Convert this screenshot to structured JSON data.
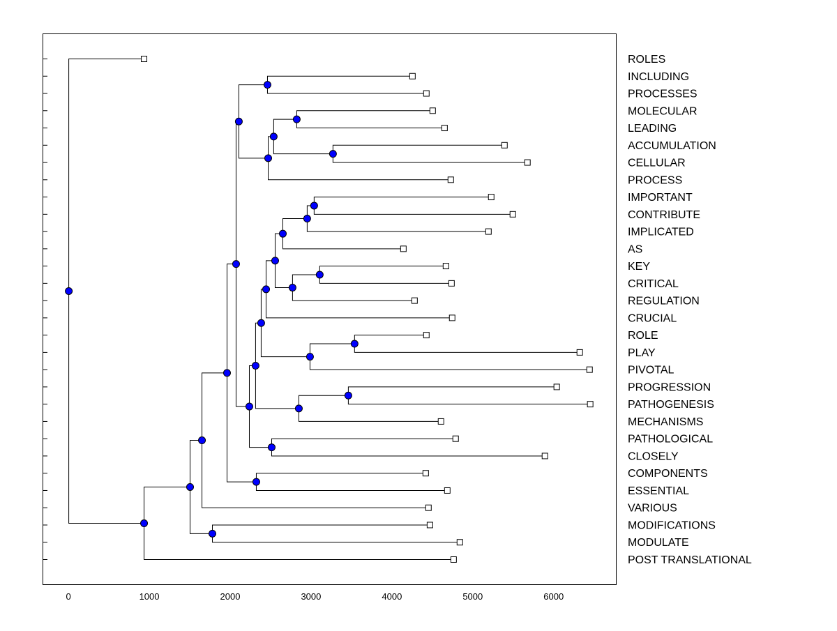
{
  "chart_data": {
    "type": "dendrogram",
    "title": "",
    "xlabel": "",
    "ylabel": "",
    "xlim": [
      -320,
      6770
    ],
    "xticks": [
      0,
      1000,
      2000,
      3000,
      4000,
      5000,
      6000
    ],
    "xtick_labels": [
      "0",
      "1000",
      "2000",
      "3000",
      "4000",
      "5000",
      "6000"
    ],
    "colors": {
      "node": "#0000ff",
      "leaf": "#ffffff",
      "line": "#000000"
    },
    "tree": {
      "x": 0,
      "children": [
        {
          "label": "ROLES",
          "x": 931
        },
        {
          "x": 931,
          "children": [
            {
              "x": 1500,
              "children": [
                {
                  "x": 1647,
                  "children": [
                    {
                      "x": 1957,
                      "children": [
                        {
                          "x": 2069,
                          "children": [
                            {
                              "x": 2103,
                              "children": [
                                {
                                  "x": 2457,
                                  "children": [
                                    {
                                      "label": "INCLUDING",
                                      "x": 4250
                                    },
                                    {
                                      "label": "PROCESSES",
                                      "x": 4422
                                    }
                                  ]
                                },
                                {
                                  "x": 2466,
                                  "children": [
                                    {
                                      "x": 2534,
                                      "children": [
                                        {
                                          "x": 2819,
                                          "children": [
                                            {
                                              "label": "MOLECULAR",
                                              "x": 4500
                                            },
                                            {
                                              "label": "LEADING",
                                              "x": 4647
                                            }
                                          ]
                                        },
                                        {
                                          "x": 3267,
                                          "children": [
                                            {
                                              "label": "ACCUMULATION",
                                              "x": 5388
                                            },
                                            {
                                              "label": "CELLULAR",
                                              "x": 5672
                                            }
                                          ]
                                        }
                                      ]
                                    },
                                    {
                                      "label": "PROCESS",
                                      "x": 4724
                                    }
                                  ]
                                }
                              ]
                            },
                            {
                              "x": 2233,
                              "children": [
                                {
                                  "x": 2310,
                                  "children": [
                                    {
                                      "x": 2379,
                                      "children": [
                                        {
                                          "x": 2440,
                                          "children": [
                                            {
                                              "x": 2552,
                                              "children": [
                                                {
                                                  "x": 2647,
                                                  "children": [
                                                    {
                                                      "x": 2948,
                                                      "children": [
                                                        {
                                                          "x": 3034,
                                                          "children": [
                                                            {
                                                              "label": "IMPORTANT",
                                                              "x": 5224
                                                            },
                                                            {
                                                              "label": "CONTRIBUTE",
                                                              "x": 5491
                                                            }
                                                          ]
                                                        },
                                                        {
                                                          "label": "IMPLICATED",
                                                          "x": 5190
                                                        }
                                                      ]
                                                    },
                                                    {
                                                      "label": "AS",
                                                      "x": 4138
                                                    }
                                                  ]
                                                },
                                                {
                                                  "x": 2767,
                                                  "children": [
                                                    {
                                                      "x": 3103,
                                                      "children": [
                                                        {
                                                          "label": "KEY",
                                                          "x": 4664
                                                        },
                                                        {
                                                          "label": "CRITICAL",
                                                          "x": 4733
                                                        }
                                                      ]
                                                    },
                                                    {
                                                      "label": "REGULATION",
                                                      "x": 4276
                                                    }
                                                  ]
                                                }
                                              ]
                                            },
                                            {
                                              "label": "CRUCIAL",
                                              "x": 4741
                                            }
                                          ]
                                        },
                                        {
                                          "x": 2983,
                                          "children": [
                                            {
                                              "x": 3534,
                                              "children": [
                                                {
                                                  "label": "ROLE",
                                                  "x": 4422
                                                },
                                                {
                                                  "label": "PLAY",
                                                  "x": 6319
                                                }
                                              ]
                                            },
                                            {
                                              "label": "PIVOTAL",
                                              "x": 6440
                                            }
                                          ]
                                        }
                                      ]
                                    },
                                    {
                                      "x": 2845,
                                      "children": [
                                        {
                                          "x": 3457,
                                          "children": [
                                            {
                                              "label": "PROGRESSION",
                                              "x": 6034
                                            },
                                            {
                                              "label": "PATHOGENESIS",
                                              "x": 6448
                                            }
                                          ]
                                        },
                                        {
                                          "label": "MECHANISMS",
                                          "x": 4603
                                        }
                                      ]
                                    }
                                  ]
                                },
                                {
                                  "x": 2509,
                                  "children": [
                                    {
                                      "label": "PATHOLOGICAL",
                                      "x": 4784
                                    },
                                    {
                                      "label": "CLOSELY",
                                      "x": 5888
                                    }
                                  ]
                                }
                              ]
                            }
                          ]
                        },
                        {
                          "x": 2319,
                          "children": [
                            {
                              "label": "COMPONENTS",
                              "x": 4414
                            },
                            {
                              "label": "ESSENTIAL",
                              "x": 4681
                            }
                          ]
                        }
                      ]
                    },
                    {
                      "label": "VARIOUS",
                      "x": 4448
                    }
                  ]
                },
                {
                  "x": 1776,
                  "children": [
                    {
                      "label": "MODIFICATIONS",
                      "x": 4466
                    },
                    {
                      "label": "MODULATE",
                      "x": 4836
                    }
                  ]
                }
              ]
            },
            {
              "label": "POST TRANSLATIONAL",
              "x": 4759
            }
          ]
        }
      ]
    }
  }
}
